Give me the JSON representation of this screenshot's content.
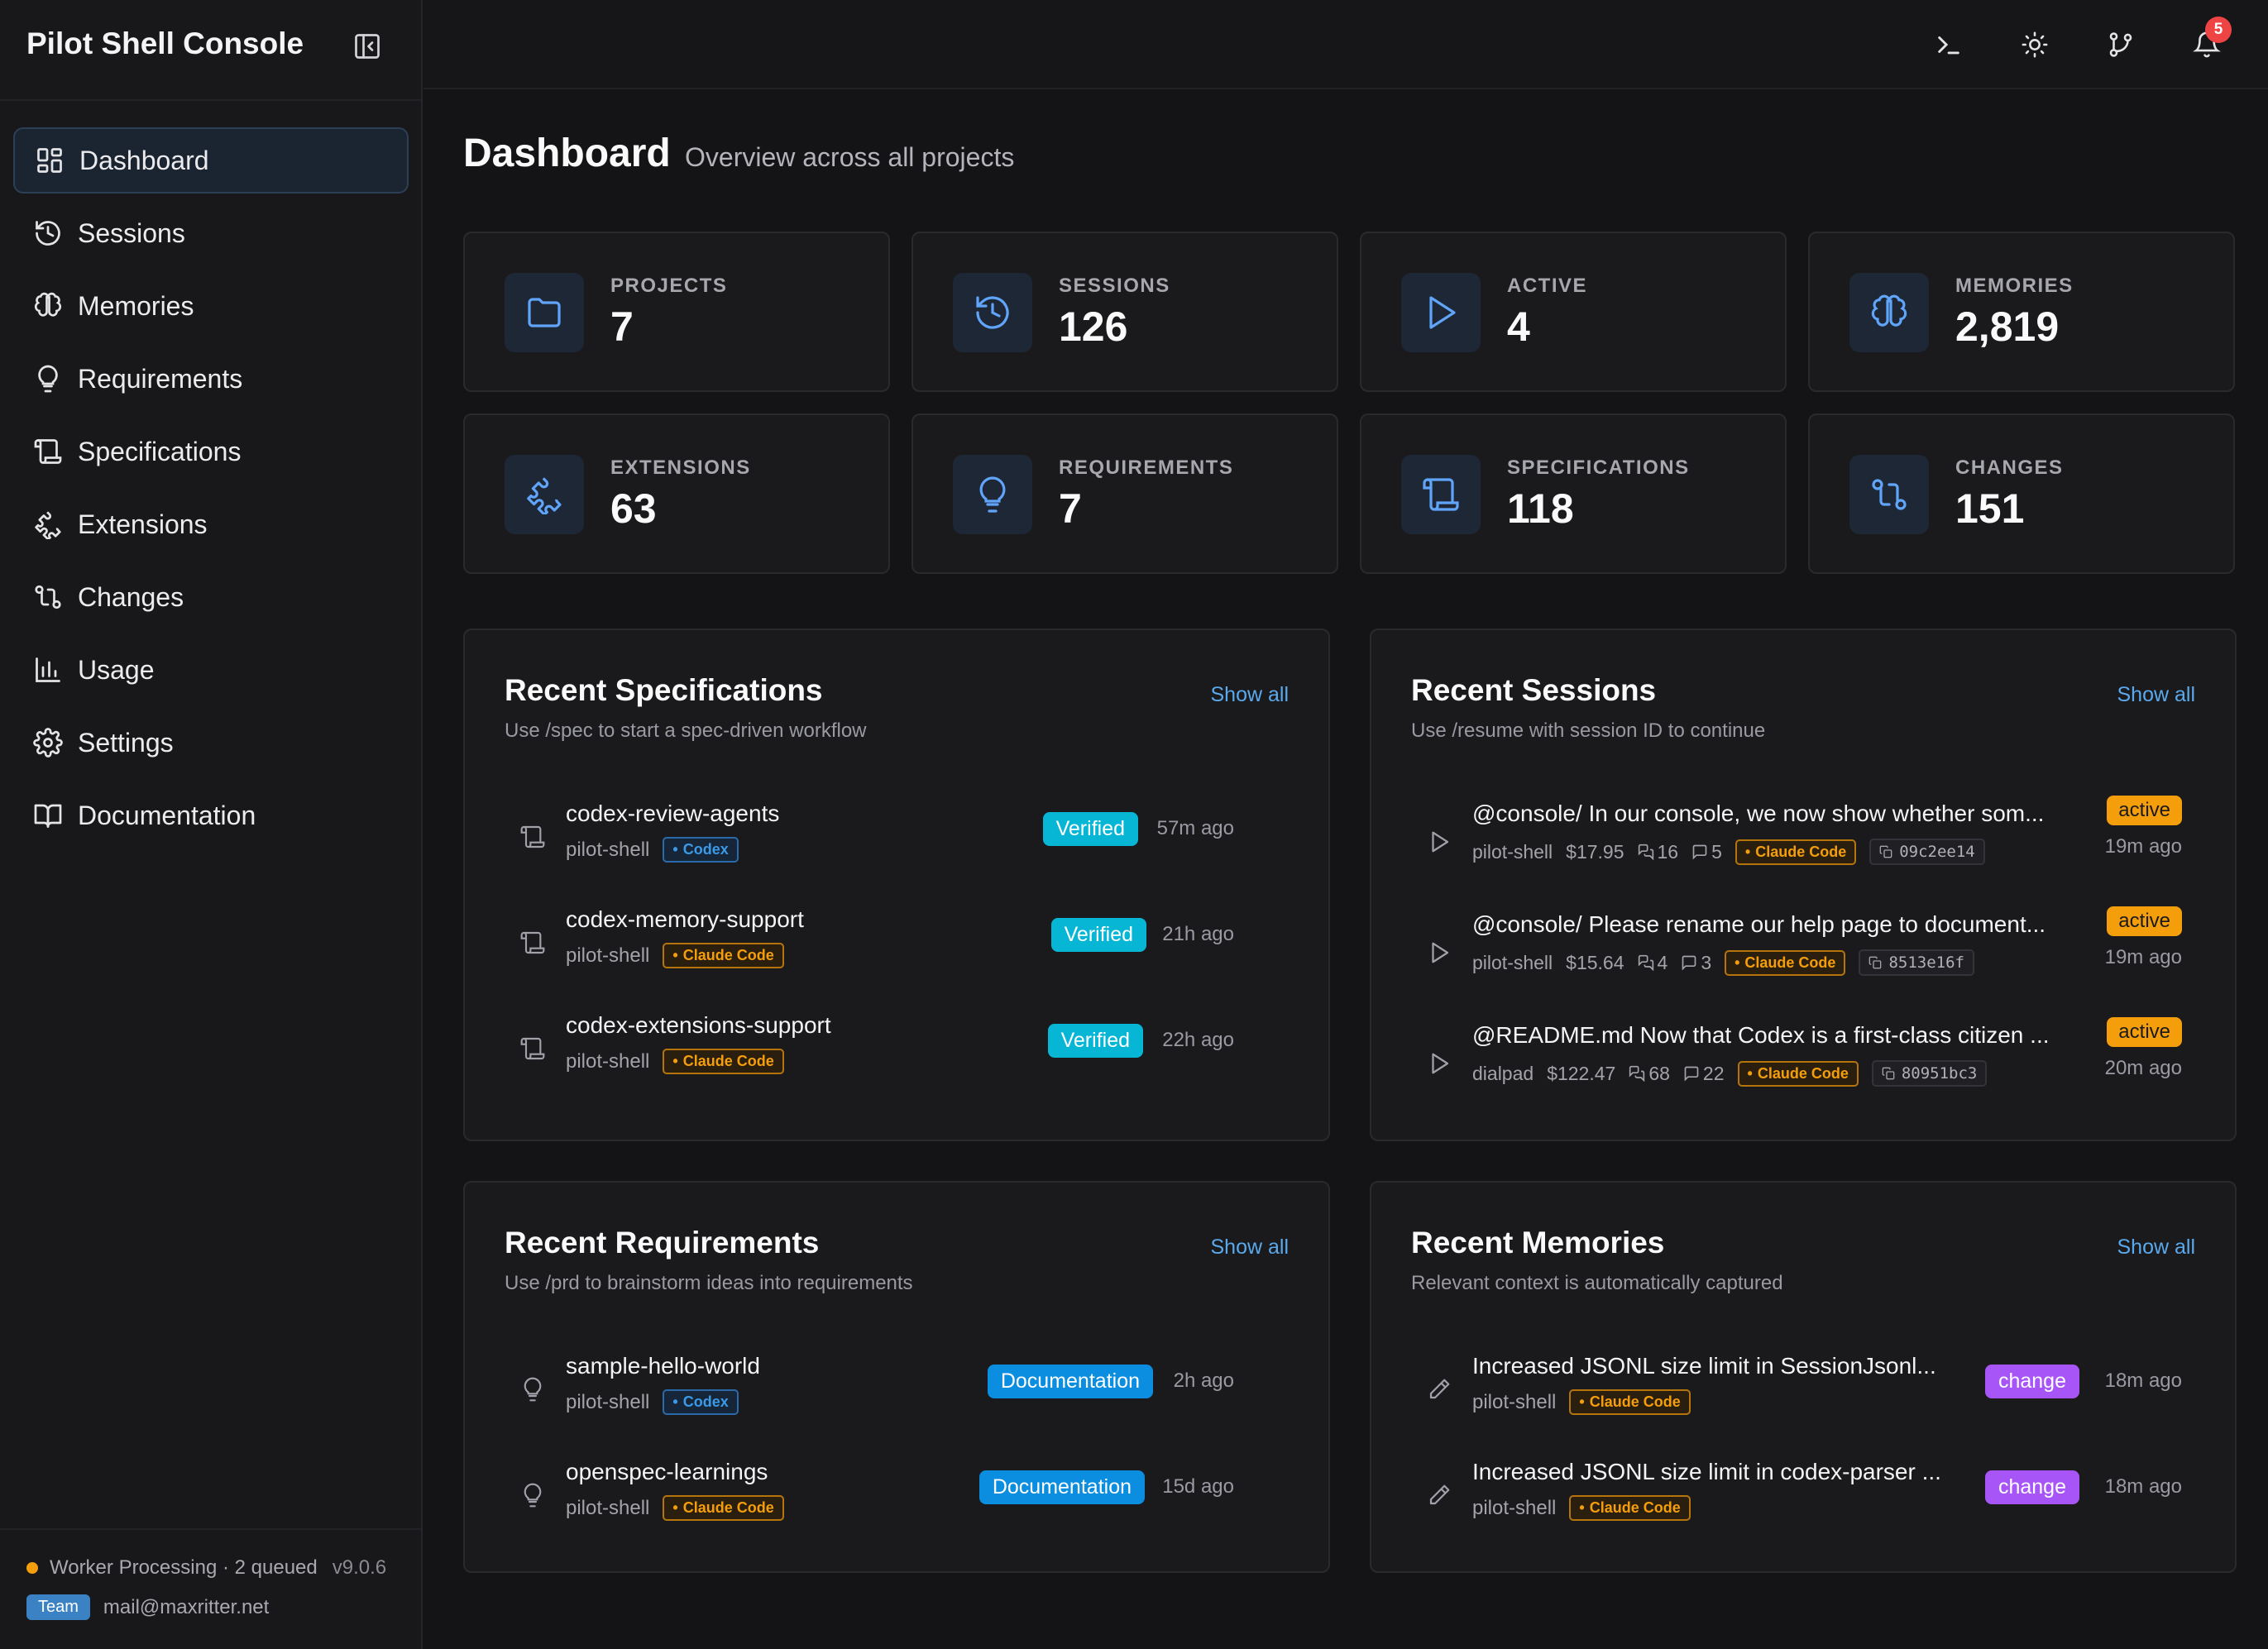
{
  "app": {
    "title": "Pilot Shell Console"
  },
  "sidebar": {
    "items": [
      {
        "label": "Dashboard",
        "icon": "dashboard-icon"
      },
      {
        "label": "Sessions",
        "icon": "history-icon"
      },
      {
        "label": "Memories",
        "icon": "brain-icon"
      },
      {
        "label": "Requirements",
        "icon": "lightbulb-icon"
      },
      {
        "label": "Specifications",
        "icon": "scroll-icon"
      },
      {
        "label": "Extensions",
        "icon": "puzzle-icon"
      },
      {
        "label": "Changes",
        "icon": "git-compare-icon"
      },
      {
        "label": "Usage",
        "icon": "bar-chart-icon"
      },
      {
        "label": "Settings",
        "icon": "gear-icon"
      },
      {
        "label": "Documentation",
        "icon": "book-icon"
      }
    ],
    "footer": {
      "worker_status": "Worker Processing",
      "queued": "· 2 queued",
      "version": "v9.0.6",
      "plan": "Team",
      "email": "mail@maxritter.net"
    }
  },
  "topbar": {
    "notification_count": "5"
  },
  "page": {
    "title": "Dashboard",
    "subtitle": "Overview across all projects"
  },
  "stats": [
    {
      "label": "PROJECTS",
      "value": "7",
      "icon": "folder-icon"
    },
    {
      "label": "SESSIONS",
      "value": "126",
      "icon": "history-icon"
    },
    {
      "label": "ACTIVE",
      "value": "4",
      "icon": "play-icon"
    },
    {
      "label": "MEMORIES",
      "value": "2,819",
      "icon": "brain-icon"
    },
    {
      "label": "EXTENSIONS",
      "value": "63",
      "icon": "puzzle-icon"
    },
    {
      "label": "REQUIREMENTS",
      "value": "7",
      "icon": "lightbulb-icon"
    },
    {
      "label": "SPECIFICATIONS",
      "value": "118",
      "icon": "scroll-icon"
    },
    {
      "label": "CHANGES",
      "value": "151",
      "icon": "git-compare-icon"
    }
  ],
  "panels": {
    "specs": {
      "title": "Recent Specifications",
      "subtitle": "Use /spec to start a spec-driven workflow",
      "show_all": "Show all",
      "items": [
        {
          "title": "codex-review-agents",
          "project": "pilot-shell",
          "agent": "Codex",
          "status": "Verified",
          "time": "57m ago"
        },
        {
          "title": "codex-memory-support",
          "project": "pilot-shell",
          "agent": "Claude Code",
          "status": "Verified",
          "time": "21h ago"
        },
        {
          "title": "codex-extensions-support",
          "project": "pilot-shell",
          "agent": "Claude Code",
          "status": "Verified",
          "time": "22h ago"
        }
      ]
    },
    "sessions": {
      "title": "Recent Sessions",
      "subtitle": "Use /resume with session ID to continue",
      "show_all": "Show all",
      "items": [
        {
          "title": "@console/ In our console, we now show whether som...",
          "project": "pilot-shell",
          "cost": "$17.95",
          "messages": "16",
          "comments": "5",
          "agent": "Claude Code",
          "hash": "09c2ee14",
          "status": "active",
          "time": "19m ago"
        },
        {
          "title": "@console/ Please rename our help page to document...",
          "project": "pilot-shell",
          "cost": "$15.64",
          "messages": "4",
          "comments": "3",
          "agent": "Claude Code",
          "hash": "8513e16f",
          "status": "active",
          "time": "19m ago"
        },
        {
          "title": "@README.md Now that Codex is a first-class citizen ...",
          "project": "dialpad",
          "cost": "$122.47",
          "messages": "68",
          "comments": "22",
          "agent": "Claude Code",
          "hash": "80951bc3",
          "status": "active",
          "time": "20m ago"
        }
      ]
    },
    "requirements": {
      "title": "Recent Requirements",
      "subtitle": "Use /prd to brainstorm ideas into requirements",
      "show_all": "Show all",
      "items": [
        {
          "title": "sample-hello-world",
          "project": "pilot-shell",
          "agent": "Codex",
          "status": "Documentation",
          "time": "2h ago"
        },
        {
          "title": "openspec-learnings",
          "project": "pilot-shell",
          "agent": "Claude Code",
          "status": "Documentation",
          "time": "15d ago"
        }
      ]
    },
    "memories": {
      "title": "Recent Memories",
      "subtitle": "Relevant context is automatically captured",
      "show_all": "Show all",
      "items": [
        {
          "title": "Increased JSONL size limit in SessionJsonl...",
          "project": "pilot-shell",
          "agent": "Claude Code",
          "status": "change",
          "time": "18m ago"
        },
        {
          "title": "Increased JSONL size limit in codex-parser ...",
          "project": "pilot-shell",
          "agent": "Claude Code",
          "status": "change",
          "time": "18m ago"
        }
      ]
    }
  },
  "colors": {
    "accent_blue": "#5aa9ec",
    "verified": "#06b6d4",
    "documentation": "#0b8de0",
    "active": "#f59e0b",
    "change": "#a855f7",
    "notification": "#ef4444"
  }
}
